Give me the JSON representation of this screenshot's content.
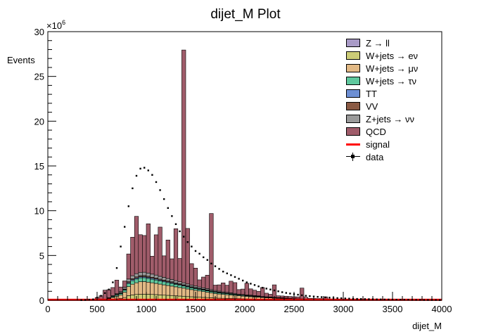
{
  "chart_data": {
    "type": "bar",
    "title": "dijet_M Plot",
    "xlabel": "dijet_M",
    "ylabel": "Events",
    "y_multiplier": "×10",
    "y_multiplier_exp": "6",
    "xlim": [
      0,
      4000
    ],
    "ylim": [
      0,
      30
    ],
    "x_ticks": [
      "0",
      "500",
      "1000",
      "1500",
      "2000",
      "2500",
      "3000",
      "3500",
      "4000"
    ],
    "y_ticks": [
      "0",
      "5",
      "10",
      "15",
      "20",
      "25",
      "30"
    ],
    "bin_width": 40,
    "series": [
      {
        "name": "Z → ll",
        "color": "#a99bc7",
        "values": [
          0,
          0,
          0,
          0,
          0,
          0,
          0,
          0,
          0,
          0,
          0,
          0,
          0,
          0,
          0,
          0,
          0,
          0,
          0,
          0,
          0.02,
          0.04,
          0.05,
          0.05,
          0.05,
          0.05,
          0.05,
          0.05,
          0.05,
          0.05,
          0.05,
          0.05,
          0.05,
          0.05,
          0.05,
          0.04,
          0.04,
          0.04,
          0.04,
          0.04,
          0.04,
          0.04,
          0.03,
          0.03,
          0.03,
          0.03,
          0.03,
          0.03,
          0.03,
          0.02,
          0.02,
          0.02,
          0.02,
          0.02,
          0.02,
          0.02,
          0.02,
          0.01,
          0.01,
          0.01,
          0.01,
          0.01,
          0.01,
          0.01,
          0.01,
          0,
          0,
          0,
          0,
          0,
          0,
          0,
          0,
          0,
          0,
          0,
          0,
          0,
          0,
          0,
          0,
          0,
          0,
          0,
          0,
          0,
          0,
          0,
          0,
          0,
          0,
          0,
          0,
          0,
          0,
          0,
          0,
          0,
          0,
          0
        ]
      },
      {
        "name": "W+jets → eν",
        "color": "#cccc77",
        "values": [
          0,
          0,
          0,
          0,
          0,
          0,
          0,
          0,
          0,
          0,
          0,
          0,
          0,
          0,
          0.02,
          0.05,
          0.1,
          0.15,
          0.2,
          0.3,
          0.5,
          0.55,
          0.6,
          0.62,
          0.63,
          0.62,
          0.6,
          0.58,
          0.55,
          0.52,
          0.5,
          0.48,
          0.45,
          0.42,
          0.4,
          0.37,
          0.35,
          0.32,
          0.3,
          0.28,
          0.26,
          0.24,
          0.22,
          0.2,
          0.19,
          0.18,
          0.17,
          0.16,
          0.15,
          0.14,
          0.13,
          0.12,
          0.11,
          0.1,
          0.09,
          0.08,
          0.08,
          0.07,
          0.06,
          0.06,
          0.05,
          0.05,
          0.04,
          0.04,
          0.03,
          0.03,
          0.03,
          0.02,
          0.02,
          0.02,
          0.02,
          0.01,
          0.01,
          0.01,
          0.01,
          0.01,
          0.01,
          0,
          0,
          0,
          0,
          0,
          0,
          0,
          0,
          0,
          0,
          0,
          0,
          0,
          0,
          0,
          0,
          0,
          0,
          0,
          0,
          0,
          0,
          0
        ]
      },
      {
        "name": "W+jets → μν",
        "color": "#e2b985",
        "values": [
          0,
          0,
          0,
          0,
          0,
          0,
          0,
          0,
          0,
          0,
          0,
          0,
          0,
          0,
          0.05,
          0.1,
          0.2,
          0.3,
          0.4,
          0.6,
          1.0,
          1.2,
          1.3,
          1.4,
          1.4,
          1.35,
          1.3,
          1.25,
          1.2,
          1.15,
          1.1,
          1.05,
          1.0,
          0.95,
          0.9,
          0.85,
          0.8,
          0.75,
          0.7,
          0.65,
          0.6,
          0.55,
          0.5,
          0.47,
          0.44,
          0.41,
          0.38,
          0.35,
          0.32,
          0.3,
          0.28,
          0.26,
          0.24,
          0.22,
          0.2,
          0.18,
          0.17,
          0.15,
          0.14,
          0.13,
          0.12,
          0.11,
          0.1,
          0.09,
          0.08,
          0.07,
          0.06,
          0.06,
          0.05,
          0.05,
          0.04,
          0.04,
          0.03,
          0.03,
          0.03,
          0.02,
          0.02,
          0.02,
          0.02,
          0.01,
          0.01,
          0.01,
          0.01,
          0.01,
          0,
          0,
          0,
          0,
          0,
          0,
          0,
          0,
          0,
          0,
          0,
          0,
          0,
          0,
          0,
          0
        ]
      },
      {
        "name": "W+jets → τν",
        "color": "#5fc89e",
        "values": [
          0,
          0,
          0,
          0,
          0,
          0,
          0,
          0,
          0,
          0,
          0,
          0,
          0,
          0,
          0.02,
          0.04,
          0.08,
          0.12,
          0.15,
          0.22,
          0.35,
          0.4,
          0.42,
          0.44,
          0.44,
          0.42,
          0.4,
          0.38,
          0.36,
          0.34,
          0.32,
          0.3,
          0.28,
          0.26,
          0.24,
          0.22,
          0.2,
          0.19,
          0.18,
          0.17,
          0.16,
          0.15,
          0.14,
          0.13,
          0.12,
          0.11,
          0.1,
          0.09,
          0.08,
          0.08,
          0.07,
          0.07,
          0.06,
          0.06,
          0.05,
          0.05,
          0.04,
          0.04,
          0.04,
          0.03,
          0.03,
          0.03,
          0.02,
          0.02,
          0.02,
          0.02,
          0.01,
          0.01,
          0.01,
          0.01,
          0.01,
          0,
          0,
          0,
          0,
          0,
          0,
          0,
          0,
          0,
          0,
          0,
          0,
          0,
          0,
          0,
          0,
          0,
          0,
          0,
          0,
          0,
          0,
          0,
          0,
          0,
          0,
          0,
          0,
          0
        ]
      },
      {
        "name": "TT",
        "color": "#6d8fd4",
        "values": [
          0,
          0,
          0,
          0,
          0,
          0,
          0,
          0,
          0,
          0,
          0,
          0,
          0,
          0,
          0.01,
          0.02,
          0.03,
          0.04,
          0.05,
          0.07,
          0.1,
          0.11,
          0.12,
          0.12,
          0.12,
          0.12,
          0.11,
          0.11,
          0.1,
          0.1,
          0.09,
          0.09,
          0.08,
          0.08,
          0.07,
          0.07,
          0.06,
          0.06,
          0.05,
          0.05,
          0.05,
          0.04,
          0.04,
          0.04,
          0.03,
          0.03,
          0.03,
          0.03,
          0.02,
          0.02,
          0.02,
          0.02,
          0.02,
          0.02,
          0.01,
          0.01,
          0.01,
          0.01,
          0.01,
          0.01,
          0.01,
          0,
          0,
          0,
          0,
          0,
          0,
          0,
          0,
          0,
          0,
          0,
          0,
          0,
          0,
          0,
          0,
          0,
          0,
          0,
          0,
          0,
          0,
          0,
          0,
          0,
          0,
          0,
          0,
          0,
          0,
          0,
          0,
          0,
          0,
          0,
          0,
          0,
          0,
          0
        ]
      },
      {
        "name": "VV",
        "color": "#8a5a44",
        "values": [
          0,
          0,
          0,
          0,
          0,
          0,
          0,
          0,
          0,
          0,
          0,
          0,
          0,
          0,
          0.01,
          0.02,
          0.03,
          0.04,
          0.05,
          0.07,
          0.1,
          0.11,
          0.12,
          0.12,
          0.12,
          0.12,
          0.11,
          0.11,
          0.1,
          0.1,
          0.09,
          0.09,
          0.08,
          0.08,
          0.07,
          0.07,
          0.06,
          0.06,
          0.05,
          0.05,
          0.05,
          0.04,
          0.04,
          0.04,
          0.03,
          0.03,
          0.03,
          0.03,
          0.02,
          0.02,
          0.02,
          0.02,
          0.02,
          0.02,
          0.01,
          0.01,
          0.01,
          0.01,
          0.01,
          0.01,
          0.01,
          0,
          0,
          0,
          0,
          0,
          0,
          0,
          0,
          0,
          0,
          0,
          0,
          0,
          0,
          0,
          0,
          0,
          0,
          0,
          0,
          0,
          0,
          0,
          0,
          0,
          0,
          0,
          0,
          0,
          0,
          0,
          0,
          0,
          0,
          0,
          0,
          0,
          0,
          0
        ]
      },
      {
        "name": "Z+jets → νν",
        "color": "#9a9a9a",
        "values": [
          0,
          0,
          0,
          0,
          0,
          0,
          0,
          0,
          0,
          0,
          0,
          0,
          0,
          0,
          0.02,
          0.05,
          0.08,
          0.1,
          0.13,
          0.2,
          0.3,
          0.33,
          0.36,
          0.37,
          0.37,
          0.36,
          0.35,
          0.33,
          0.31,
          0.3,
          0.28,
          0.27,
          0.25,
          0.23,
          0.22,
          0.2,
          0.18,
          0.17,
          0.16,
          0.15,
          0.14,
          0.13,
          0.12,
          0.11,
          0.1,
          0.09,
          0.09,
          0.08,
          0.07,
          0.07,
          0.06,
          0.06,
          0.05,
          0.05,
          0.04,
          0.04,
          0.04,
          0.03,
          0.03,
          0.03,
          0.02,
          0.02,
          0.02,
          0.02,
          0.02,
          0.01,
          0.01,
          0.01,
          0.01,
          0.01,
          0.01,
          0,
          0,
          0,
          0,
          0,
          0,
          0,
          0,
          0,
          0,
          0,
          0,
          0,
          0,
          0,
          0,
          0,
          0,
          0,
          0,
          0,
          0,
          0,
          0,
          0,
          0,
          0,
          0,
          0
        ]
      },
      {
        "name": "QCD",
        "color": "#a05c6a",
        "values": [
          0,
          0,
          0,
          0,
          0,
          0,
          0,
          0,
          0,
          0,
          0,
          0,
          0.3,
          0.5,
          1.0,
          0.9,
          0.9,
          1.5,
          0.5,
          0.7,
          2.8,
          4.3,
          6.4,
          4.2,
          4.1,
          5.5,
          2.0,
          4.5,
          5.5,
          2.4,
          4.3,
          2.3,
          5.8,
          2.6,
          26.0,
          6.2,
          2.4,
          2.0,
          0.8,
          1.2,
          1.5,
          8.5,
          0.6,
          0.7,
          1.0,
          0.8,
          1.3,
          1.2,
          0.5,
          0.6,
          1.3,
          0.7,
          0.6,
          0.5,
          1.0,
          0.4,
          0.3,
          1.4,
          0.2,
          0.2,
          0.2,
          0.2,
          0.2,
          0.2,
          1.2,
          0.2,
          0.1,
          0.1,
          0.1,
          0.1,
          0.3,
          0.1,
          0.1,
          0.1,
          0.1,
          0,
          0,
          0,
          0,
          0,
          0,
          0,
          0,
          0,
          0,
          0,
          0,
          0,
          0,
          0,
          0,
          0,
          0,
          0,
          0,
          0,
          0,
          0,
          0,
          0
        ]
      },
      {
        "name": "signal",
        "color": "#ff0000",
        "values": [
          0.05,
          0.05,
          0.05,
          0.05,
          0.05,
          0.05,
          0.05,
          0.05,
          0.05,
          0.05,
          0.05,
          0.05,
          0.05,
          0.05,
          0.05,
          0.05,
          0.05,
          0.05,
          0.05,
          0.05,
          0.05,
          0.05,
          0.05,
          0.05,
          0.05,
          0.05,
          0.05,
          0.05,
          0.05,
          0.05,
          0.05,
          0.05,
          0.05,
          0.05,
          0.05,
          0.05,
          0.05,
          0.05,
          0.05,
          0.05,
          0.05,
          0.05,
          0.05,
          0.05,
          0.05,
          0.05,
          0.05,
          0.05,
          0.05,
          0.05,
          0.05,
          0.05,
          0.05,
          0.05,
          0.05,
          0.05,
          0.05,
          0.05,
          0.05,
          0.05,
          0.05,
          0.05,
          0.05,
          0.05,
          0.05,
          0.05,
          0.05,
          0.05,
          0.05,
          0.05,
          0.05,
          0.05,
          0.05,
          0.05,
          0.05,
          0.05,
          0.05,
          0.05,
          0.05,
          0.05,
          0.05,
          0.05,
          0.05,
          0.05,
          0.05,
          0.05,
          0.05,
          0.05,
          0.05,
          0.05,
          0.05,
          0.05,
          0.05,
          0.05,
          0.05,
          0.05,
          0.05,
          0.05,
          0.05,
          0.05
        ]
      },
      {
        "name": "data",
        "color": "#000000",
        "values": [
          0,
          0,
          0,
          0,
          0,
          0,
          0,
          0,
          0.02,
          0.03,
          0.05,
          0.1,
          0.3,
          0.5,
          0.8,
          1.2,
          2.0,
          3.6,
          6.0,
          8.2,
          10.5,
          12.5,
          13.9,
          14.7,
          14.8,
          14.5,
          14.0,
          13.2,
          12.3,
          11.3,
          10.3,
          9.4,
          8.5,
          7.7,
          7.1,
          6.5,
          6.0,
          5.5,
          5.2,
          4.8,
          4.5,
          4.1,
          3.8,
          3.5,
          3.2,
          3.0,
          2.8,
          2.6,
          2.4,
          2.2,
          2.0,
          1.85,
          1.7,
          1.55,
          1.4,
          1.3,
          1.2,
          1.1,
          1.0,
          0.9,
          0.82,
          0.75,
          0.68,
          0.62,
          0.56,
          0.5,
          0.46,
          0.42,
          0.38,
          0.35,
          0.32,
          0.29,
          0.26,
          0.24,
          0.22,
          0.2,
          0.18,
          0.17,
          0.15,
          0.14,
          0.13,
          0.12,
          0.11,
          0.1,
          0.09,
          0.08,
          0.08,
          0.07,
          0.06,
          0.06,
          0.05,
          0.05,
          0.04,
          0.04,
          0.04,
          0.03,
          0.03,
          0.03,
          0.03,
          0.02
        ]
      }
    ]
  }
}
